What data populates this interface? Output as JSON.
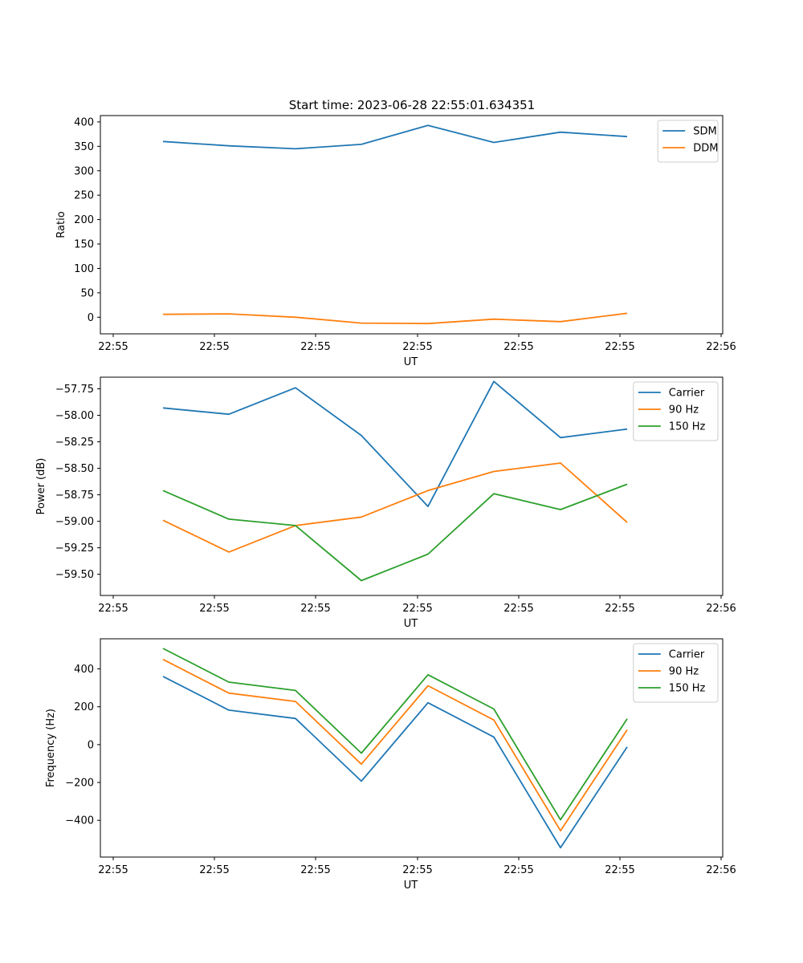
{
  "figure": {
    "title": "Start time: 2023-06-28 22:55:01.634351"
  },
  "colors": {
    "blue": "#1f77b4",
    "orange": "#ff7f0e",
    "green": "#2ca02c"
  },
  "chart_data": [
    {
      "type": "line",
      "title": "Start time: 2023-06-28 22:55:01.634351",
      "xlabel": "UT",
      "ylabel": "Ratio",
      "x": [
        "22:55:01.6",
        "22:55:02.2",
        "22:55:02.8",
        "22:55:03.4",
        "22:55:04.0",
        "22:55:04.6",
        "22:55:05.2",
        "22:55:05.8"
      ],
      "x_tick_labels": [
        "22:55",
        "22:55",
        "22:55",
        "22:55",
        "22:55",
        "22:55",
        "22:56"
      ],
      "y_ticks": [
        0,
        50,
        100,
        150,
        200,
        250,
        300,
        350,
        400
      ],
      "ylim": [
        -34,
        413
      ],
      "grid": false,
      "legend": "upper right",
      "series": [
        {
          "name": "SDM",
          "color": "#1f77b4",
          "values": [
            360,
            351,
            345,
            354,
            393,
            358,
            379,
            370
          ]
        },
        {
          "name": "DDM",
          "color": "#ff7f0e",
          "values": [
            6,
            7,
            0,
            -12,
            -13,
            -4,
            -9,
            8
          ]
        }
      ]
    },
    {
      "type": "line",
      "title": "",
      "xlabel": "UT",
      "ylabel": "Power (dB)",
      "x": [
        "22:55:01.6",
        "22:55:02.2",
        "22:55:02.8",
        "22:55:03.4",
        "22:55:04.0",
        "22:55:04.6",
        "22:55:05.2",
        "22:55:05.8"
      ],
      "x_tick_labels": [
        "22:55",
        "22:55",
        "22:55",
        "22:55",
        "22:55",
        "22:55",
        "22:56"
      ],
      "y_ticks": [
        -59.5,
        -59.25,
        -59.0,
        -58.75,
        -58.5,
        -58.25,
        -58.0,
        -57.75
      ],
      "y_tick_labels": [
        "−59.50",
        "−59.25",
        "−59.00",
        "−58.75",
        "−58.50",
        "−58.25",
        "−58.00",
        "−57.75"
      ],
      "ylim": [
        -59.7,
        -57.64
      ],
      "grid": false,
      "legend": "upper right",
      "series": [
        {
          "name": "Carrier",
          "color": "#1f77b4",
          "values": [
            -57.93,
            -57.99,
            -57.74,
            -58.19,
            -58.86,
            -57.68,
            -58.21,
            -58.13
          ]
        },
        {
          "name": "90 Hz",
          "color": "#ff7f0e",
          "values": [
            -58.99,
            -59.29,
            -59.04,
            -58.96,
            -58.71,
            -58.53,
            -58.45,
            -59.01
          ]
        },
        {
          "name": "150 Hz",
          "color": "#2ca02c",
          "values": [
            -58.71,
            -58.98,
            -59.04,
            -59.56,
            -59.31,
            -58.74,
            -58.89,
            -58.65
          ]
        }
      ]
    },
    {
      "type": "line",
      "title": "",
      "xlabel": "UT",
      "ylabel": "Frequency (Hz)",
      "x": [
        "22:55:01.6",
        "22:55:02.2",
        "22:55:02.8",
        "22:55:03.4",
        "22:55:04.0",
        "22:55:04.6",
        "22:55:05.2",
        "22:55:05.8"
      ],
      "x_tick_labels": [
        "22:55",
        "22:55",
        "22:55",
        "22:55",
        "22:55",
        "22:55",
        "22:56"
      ],
      "y_ticks": [
        -400,
        -200,
        0,
        200,
        400
      ],
      "y_tick_labels": [
        "−400",
        "−200",
        "0",
        "200",
        "400"
      ],
      "ylim": [
        -594,
        559
      ],
      "grid": false,
      "legend": "upper right",
      "series": [
        {
          "name": "Carrier",
          "color": "#1f77b4",
          "values": [
            360,
            182,
            138,
            -193,
            221,
            40,
            -545,
            -12
          ]
        },
        {
          "name": "90 Hz",
          "color": "#ff7f0e",
          "values": [
            450,
            272,
            228,
            -103,
            311,
            130,
            -455,
            78
          ]
        },
        {
          "name": "150 Hz",
          "color": "#2ca02c",
          "values": [
            508,
            330,
            286,
            -45,
            369,
            188,
            -397,
            136
          ]
        }
      ]
    }
  ]
}
